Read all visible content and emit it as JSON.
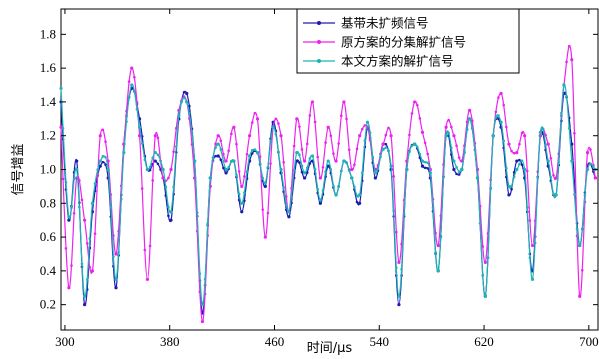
{
  "chart_data": {
    "type": "line",
    "title": "",
    "xlabel": "时间/μs",
    "ylabel": "信号增益",
    "xlim": [
      297,
      707
    ],
    "ylim": [
      0.05,
      1.95
    ],
    "xticks": [
      300,
      380,
      460,
      540,
      620,
      700
    ],
    "yticks": [
      0.2,
      0.4,
      0.6,
      0.8,
      1.0,
      1.2,
      1.4,
      1.6,
      1.8
    ],
    "ytick_labels": [
      "0.2",
      "0.4",
      "0.6",
      "0.8",
      "1.0",
      "1.2",
      "1.4",
      "1.6",
      "1.8"
    ],
    "grid": false,
    "legend_position": "top-right",
    "x": [
      297,
      303,
      309,
      315,
      321,
      327,
      333,
      339,
      345,
      351,
      357,
      363,
      369,
      375,
      381,
      387,
      393,
      399,
      405,
      411,
      417,
      423,
      429,
      435,
      441,
      447,
      453,
      459,
      465,
      471,
      477,
      483,
      489,
      495,
      501,
      507,
      513,
      519,
      525,
      531,
      537,
      543,
      549,
      555,
      561,
      567,
      573,
      579,
      585,
      591,
      597,
      603,
      609,
      615,
      621,
      627,
      633,
      639,
      645,
      651,
      657,
      663,
      669,
      675,
      681,
      687,
      693,
      699,
      705
    ],
    "series": [
      {
        "name": "基带未扩频信号",
        "color": "#1c1cb4",
        "marker": "circle",
        "values": [
          1.4,
          0.7,
          1.05,
          0.2,
          0.75,
          1.02,
          0.95,
          0.3,
          1.15,
          1.48,
          1.3,
          1.0,
          1.05,
          0.95,
          0.7,
          1.3,
          1.45,
          1.05,
          0.15,
          0.95,
          1.08,
          0.98,
          1.05,
          0.75,
          1.05,
          1.1,
          0.9,
          1.28,
          0.98,
          0.72,
          1.05,
          0.95,
          1.05,
          0.8,
          1.02,
          0.85,
          1.05,
          0.95,
          0.8,
          1.25,
          0.95,
          1.15,
          1.0,
          0.2,
          1.0,
          1.15,
          1.02,
          0.95,
          0.4,
          1.2,
          1.0,
          1.0,
          1.3,
          0.95,
          0.25,
          1.2,
          1.25,
          0.85,
          1.05,
          0.95,
          0.4,
          1.2,
          1.02,
          0.85,
          1.45,
          1.15,
          0.55,
          1.02,
          0.95
        ]
      },
      {
        "name": "原方案的分集解扩信号",
        "color": "#ee22ee",
        "marker": "circle",
        "values": [
          1.25,
          0.3,
          0.95,
          0.7,
          0.4,
          1.2,
          1.05,
          0.5,
          1.15,
          1.6,
          1.2,
          0.35,
          1.2,
          0.95,
          1.0,
          1.35,
          1.4,
          0.95,
          0.1,
          0.9,
          1.2,
          1.05,
          1.25,
          0.9,
          1.2,
          1.3,
          0.6,
          1.25,
          1.2,
          0.75,
          1.3,
          1.05,
          1.4,
          0.95,
          1.25,
          1.05,
          1.4,
          1.0,
          1.2,
          1.25,
          1.0,
          1.15,
          1.2,
          0.45,
          1.05,
          1.4,
          1.22,
          1.0,
          0.55,
          1.25,
          1.2,
          1.05,
          1.35,
          1.0,
          0.45,
          1.2,
          1.45,
          1.15,
          1.1,
          1.2,
          0.55,
          1.2,
          1.15,
          0.95,
          1.5,
          1.65,
          0.25,
          1.1,
          0.95
        ]
      },
      {
        "name": "本文方案的解扩信号",
        "color": "#1cb4b4",
        "marker": "circle",
        "values": [
          1.48,
          0.72,
          1.0,
          0.25,
          0.8,
          1.05,
          1.0,
          0.35,
          1.1,
          1.5,
          1.25,
          1.0,
          1.1,
          1.0,
          0.75,
          1.32,
          1.4,
          1.05,
          0.2,
          0.95,
          1.15,
          1.0,
          1.05,
          0.8,
          1.08,
          1.1,
          0.92,
          1.25,
          1.0,
          0.75,
          1.1,
          0.98,
          1.08,
          0.82,
          1.05,
          0.85,
          1.05,
          0.95,
          0.85,
          1.28,
          0.98,
          1.12,
          1.02,
          0.25,
          1.0,
          1.15,
          1.05,
          0.98,
          0.4,
          1.2,
          1.05,
          1.0,
          1.3,
          0.95,
          0.25,
          1.2,
          1.28,
          0.9,
          1.0,
          1.0,
          0.35,
          1.22,
          1.05,
          0.85,
          1.5,
          1.05,
          0.55,
          1.0,
          1.0
        ]
      }
    ]
  }
}
